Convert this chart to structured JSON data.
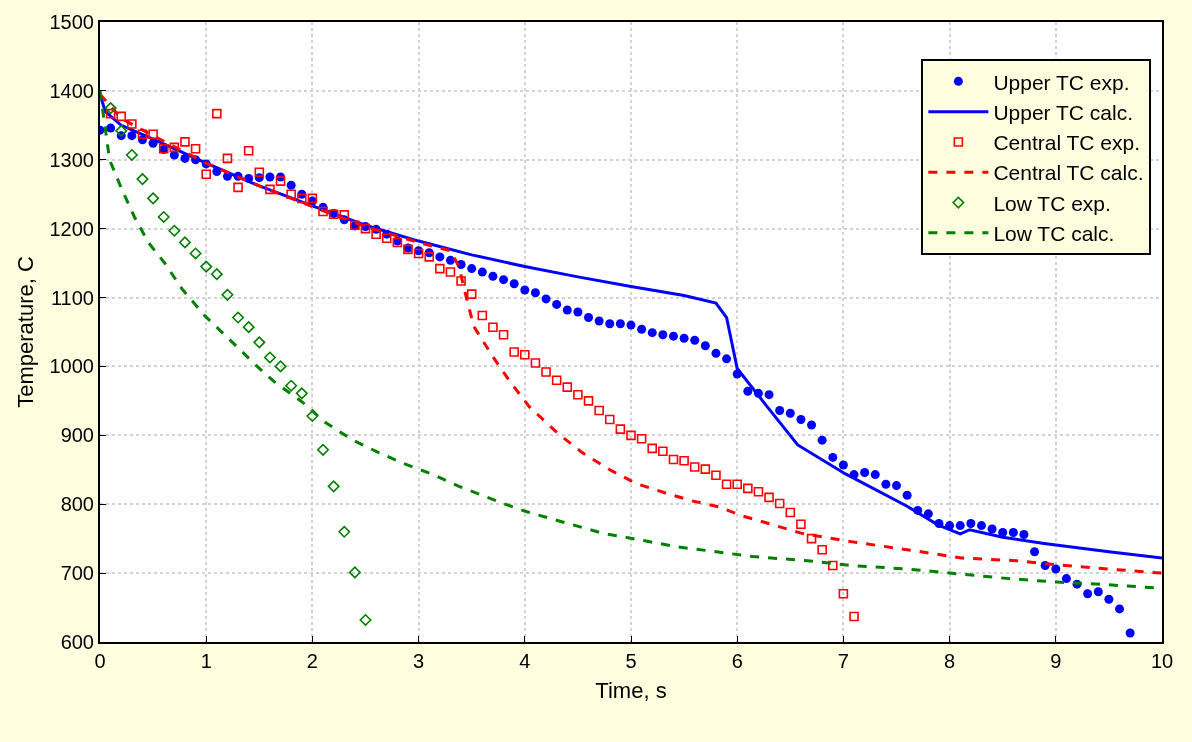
{
  "chart_data": {
    "type": "scatter",
    "xlabel": "Time, s",
    "ylabel": "Temperature, C",
    "xlim": [
      0,
      10
    ],
    "xticks": [
      0,
      1,
      2,
      3,
      4,
      5,
      6,
      7,
      8,
      9,
      10
    ],
    "ylim": [
      600,
      1500
    ],
    "yticks": [
      600,
      700,
      800,
      900,
      1000,
      1100,
      1200,
      1300,
      1400,
      1500
    ],
    "grid": true,
    "legend": "top right",
    "series": [
      {
        "name": "Upper TC exp.",
        "marker": "circle",
        "color": "#0000ff",
        "x": [
          0,
          0.1,
          0.2,
          0.3,
          0.4,
          0.5,
          0.6,
          0.7,
          0.8,
          0.9,
          1.0,
          1.1,
          1.2,
          1.3,
          1.4,
          1.5,
          1.6,
          1.7,
          1.8,
          1.9,
          2.0,
          2.1,
          2.2,
          2.3,
          2.4,
          2.5,
          2.6,
          2.7,
          2.8,
          2.9,
          3.0,
          3.1,
          3.2,
          3.3,
          3.4,
          3.5,
          3.6,
          3.7,
          3.8,
          3.9,
          4.0,
          4.1,
          4.2,
          4.3,
          4.4,
          4.5,
          4.6,
          4.7,
          4.8,
          4.9,
          5.0,
          5.1,
          5.2,
          5.3,
          5.4,
          5.5,
          5.6,
          5.7,
          5.8,
          5.9,
          6.0,
          6.1,
          6.2,
          6.3,
          6.4,
          6.5,
          6.6,
          6.7,
          6.8,
          6.9,
          7.0,
          7.1,
          7.2,
          7.3,
          7.4,
          7.5,
          7.6,
          7.7,
          7.8,
          7.9,
          8.0,
          8.1,
          8.2,
          8.3,
          8.4,
          8.5,
          8.6,
          8.7,
          8.8,
          8.9,
          9.0,
          9.1,
          9.2,
          9.3,
          9.4,
          9.5,
          9.6,
          9.7
        ],
        "values": [
          1343,
          1346,
          1335,
          1335,
          1329,
          1324,
          1315,
          1307,
          1302,
          1300,
          1294,
          1283,
          1276,
          1276,
          1273,
          1274,
          1275,
          1275,
          1263,
          1250,
          1240,
          1231,
          1222,
          1213,
          1204,
          1203,
          1199,
          1192,
          1182,
          1172,
          1168,
          1165,
          1159,
          1154,
          1148,
          1142,
          1137,
          1131,
          1126,
          1120,
          1111,
          1107,
          1098,
          1090,
          1082,
          1079,
          1071,
          1066,
          1062,
          1062,
          1060,
          1054,
          1049,
          1046,
          1044,
          1041,
          1038,
          1030,
          1019,
          1011,
          989,
          964,
          961,
          959,
          936,
          932,
          923,
          915,
          893,
          868,
          857,
          843,
          846,
          843,
          829,
          827,
          813,
          791,
          786,
          772,
          769,
          769,
          772,
          769,
          764,
          759,
          759,
          756,
          731,
          711,
          706,
          692,
          684,
          670,
          673,
          662,
          648,
          613
        ]
      },
      {
        "name": "Upper TC calc.",
        "type": "line",
        "marker": "none",
        "line_style": "solid",
        "color": "#0000ff",
        "x": [
          0,
          0.05,
          0.2,
          0.5,
          1.0,
          1.5,
          2.0,
          2.5,
          3.0,
          3.5,
          4.0,
          4.5,
          5.0,
          5.5,
          5.8,
          5.9,
          6.0,
          6.28,
          6.57,
          7.02,
          7.6,
          7.89,
          8.1,
          8.19,
          8.5,
          8.89,
          9.5,
          10
        ],
        "values": [
          1395,
          1370,
          1350,
          1330,
          1295,
          1262,
          1233,
          1205,
          1182,
          1162,
          1145,
          1130,
          1116,
          1103,
          1092,
          1071,
          997,
          942,
          886,
          844,
          797,
          770,
          757,
          763,
          752,
          743,
          731,
          722
        ]
      },
      {
        "name": "Central TC exp.",
        "marker": "square",
        "color": "#ff0000",
        "x": [
          0.1,
          0.2,
          0.3,
          0.4,
          0.5,
          0.6,
          0.7,
          0.8,
          0.9,
          1.0,
          1.1,
          1.2,
          1.3,
          1.4,
          1.5,
          1.6,
          1.7,
          1.8,
          1.9,
          2.0,
          2.1,
          2.2,
          2.3,
          2.4,
          2.5,
          2.6,
          2.7,
          2.8,
          2.9,
          3.0,
          3.1,
          3.2,
          3.3,
          3.4,
          3.5,
          3.6,
          3.7,
          3.8,
          3.9,
          4.0,
          4.1,
          4.2,
          4.3,
          4.4,
          4.5,
          4.6,
          4.7,
          4.8,
          4.9,
          5.0,
          5.1,
          5.2,
          5.3,
          5.4,
          5.5,
          5.6,
          5.7,
          5.8,
          5.9,
          6.0,
          6.1,
          6.2,
          6.3,
          6.4,
          6.5,
          6.6,
          6.7,
          6.8,
          6.9,
          7.0,
          7.1
        ],
        "values": [
          1367,
          1363,
          1352,
          1337,
          1337,
          1316,
          1318,
          1326,
          1316,
          1279,
          1367,
          1302,
          1260,
          1313,
          1282,
          1257,
          1269,
          1250,
          1244,
          1244,
          1225,
          1221,
          1220,
          1205,
          1200,
          1192,
          1186,
          1180,
          1170,
          1164,
          1159,
          1142,
          1137,
          1124,
          1105,
          1074,
          1057,
          1046,
          1021,
          1017,
          1005,
          992,
          980,
          970,
          959,
          950,
          936,
          923,
          909,
          900,
          895,
          881,
          877,
          865,
          863,
          854,
          851,
          842,
          829,
          829,
          823,
          818,
          810,
          801,
          788,
          771,
          750,
          734,
          711,
          670,
          637
        ]
      },
      {
        "name": "Central TC calc.",
        "type": "line",
        "marker": "none",
        "line_style": "dashed",
        "color": "#ff0000",
        "x": [
          0,
          0.2,
          0.5,
          1.0,
          1.5,
          2.0,
          2.5,
          3.0,
          3.3,
          3.38,
          3.44,
          3.52,
          3.7,
          3.86,
          4.04,
          4.31,
          4.54,
          4.8,
          5.05,
          5.31,
          5.57,
          5.83,
          6.05,
          6.34,
          6.6,
          6.86,
          7.1,
          7.6,
          8.11,
          8.63,
          9.01,
          9.4,
          10
        ],
        "values": [
          1395,
          1360,
          1335,
          1295,
          1262,
          1232,
          1203,
          1180,
          1168,
          1145,
          1106,
          1058,
          1014,
          978,
          942,
          903,
          875,
          850,
          830,
          817,
          805,
          796,
          783,
          770,
          758,
          751,
          745,
          734,
          722,
          718,
          712,
          707,
          700
        ]
      },
      {
        "name": "Low TC exp.",
        "marker": "diamond",
        "color": "#008000",
        "x": [
          0.1,
          0.2,
          0.3,
          0.4,
          0.5,
          0.6,
          0.7,
          0.8,
          0.9,
          1.0,
          1.1,
          1.2,
          1.3,
          1.4,
          1.5,
          1.6,
          1.7,
          1.8,
          1.9,
          2.0,
          2.1,
          2.2,
          2.3,
          2.4,
          2.5
        ],
        "values": [
          1375,
          1342,
          1307,
          1272,
          1244,
          1217,
          1197,
          1180,
          1164,
          1145,
          1134,
          1104,
          1071,
          1057,
          1035,
          1013,
          1000,
          972,
          961,
          928,
          879,
          826,
          760,
          701,
          632
        ]
      },
      {
        "name": "Low TC calc.",
        "type": "line",
        "marker": "none",
        "line_style": "dashed",
        "color": "#008000",
        "x": [
          0,
          0.06,
          0.09,
          0.2,
          0.33,
          0.46,
          0.61,
          0.77,
          0.99,
          1.16,
          1.24,
          1.4,
          1.48,
          1.64,
          1.96,
          2.09,
          2.38,
          2.61,
          2.86,
          3.12,
          3.38,
          3.8,
          4.02,
          4.34,
          4.73,
          5.02,
          5.44,
          5.7,
          6.15,
          6.66,
          7.08,
          7.6,
          8.08,
          8.56,
          9.01,
          9.5,
          10
        ],
        "values": [
          1400,
          1334,
          1300,
          1259,
          1215,
          1179,
          1150,
          1113,
          1073,
          1048,
          1036,
          1012,
          1000,
          978,
          942,
          922,
          893,
          876,
          859,
          844,
          826,
          801,
          789,
          775,
          758,
          750,
          738,
          733,
          724,
          718,
          711,
          706,
          699,
          692,
          687,
          683,
          678
        ]
      }
    ]
  }
}
